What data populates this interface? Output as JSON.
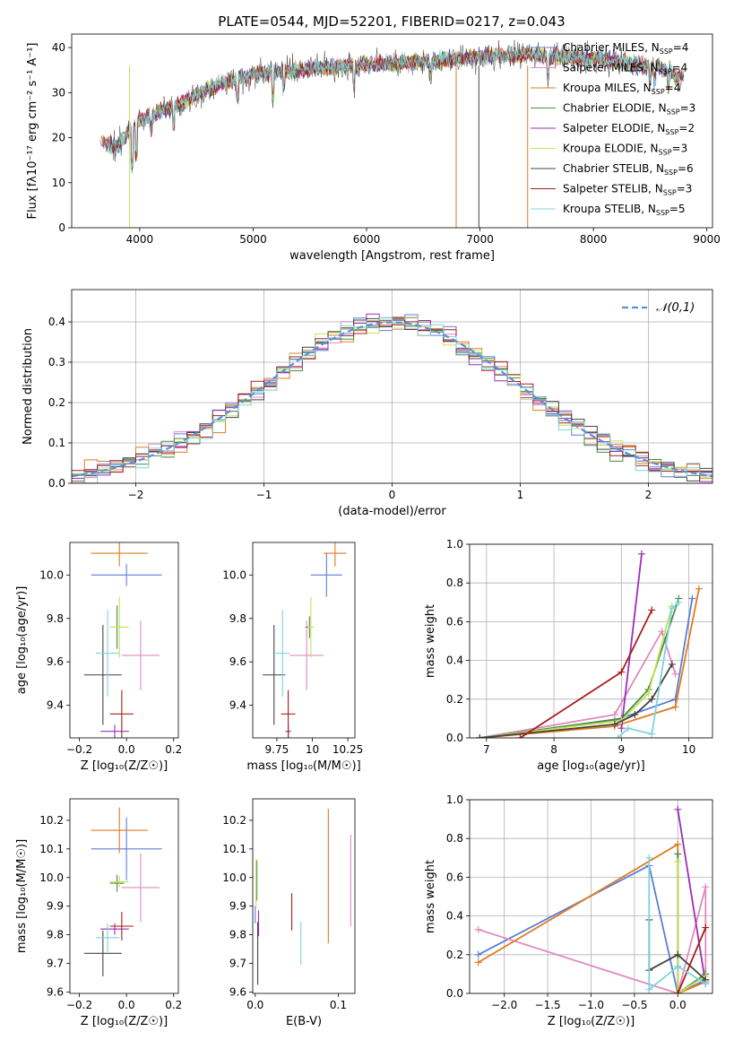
{
  "page_title": "PLATE=0544, MJD=52201, FIBERID=0217, z=0.043",
  "colors": {
    "Chabrier MILES": "#5b7fd6",
    "Salpeter MILES": "#e08abf",
    "Kroupa MILES": "#e07b22",
    "Chabrier ELODIE": "#4a8a4a",
    "Salpeter ELODIE": "#9b2fb5",
    "Kroupa ELODIE": "#c6e254",
    "Chabrier STELIB": "#444444",
    "Salpeter STELIB": "#a81d1d",
    "Kroupa STELIB": "#7fd3de",
    "normal": "#5b8fd6",
    "grid": "#b0b0b0"
  },
  "chart_data": [
    {
      "id": "spectrum",
      "type": "line",
      "title": "PLATE=0544, MJD=52201, FIBERID=0217, z=0.043",
      "xlabel": "wavelength [Angstrom, rest frame]",
      "ylabel": "Flux [fλ10⁻¹⁷ erg cm⁻² s⁻¹ A⁻¹]",
      "xlim": [
        3400,
        9050
      ],
      "ylim": [
        0,
        43
      ],
      "xticks": [
        4000,
        5000,
        6000,
        7000,
        8000,
        9000
      ],
      "yticks": [
        0,
        10,
        20,
        30,
        40
      ],
      "grid": false,
      "legend": "top-right",
      "continuum_x": [
        3650,
        3800,
        4000,
        4200,
        4400,
        4700,
        5000,
        5400,
        5800,
        6200,
        6600,
        7000,
        7400,
        7800,
        8200,
        8600,
        8800
      ],
      "continuum_y": [
        19,
        18,
        24,
        26,
        28,
        32,
        34,
        35,
        36,
        36.5,
        37,
        38,
        38.5,
        38,
        37,
        35.5,
        33
      ],
      "series": [
        {
          "name": "Chabrier MILES, N_SSP=4",
          "label_main": "Chabrier MILES, N",
          "label_sub": "SSP",
          "label_end": "=4"
        },
        {
          "name": "Salpeter MILES, N_SSP=4",
          "label_main": "Salpeter MILES, N",
          "label_sub": "SSP",
          "label_end": "=4"
        },
        {
          "name": "Kroupa MILES, N_SSP=4",
          "label_main": "Kroupa MILES, N",
          "label_sub": "SSP",
          "label_end": "=4"
        },
        {
          "name": "Chabrier ELODIE, N_SSP=3",
          "label_main": "Chabrier ELODIE, N",
          "label_sub": "SSP",
          "label_end": "=3"
        },
        {
          "name": "Salpeter ELODIE, N_SSP=2",
          "label_main": "Salpeter ELODIE, N",
          "label_sub": "SSP",
          "label_end": "=2"
        },
        {
          "name": "Kroupa ELODIE, N_SSP=3",
          "label_main": "Kroupa ELODIE, N",
          "label_sub": "SSP",
          "label_end": "=3"
        },
        {
          "name": "Chabrier STELIB, N_SSP=6",
          "label_main": "Chabrier STELIB, N",
          "label_sub": "SSP",
          "label_end": "=6"
        },
        {
          "name": "Salpeter STELIB, N_SSP=3",
          "label_main": "Salpeter STELIB, N",
          "label_sub": "SSP",
          "label_end": "=3"
        },
        {
          "name": "Kroupa STELIB, N_SSP=5",
          "label_main": "Kroupa STELIB, N",
          "label_sub": "SSP",
          "label_end": "=5"
        }
      ]
    },
    {
      "id": "residuals",
      "type": "line",
      "xlabel": "(data-model)/error",
      "ylabel": "Normed distribution",
      "xlim": [
        -2.5,
        2.5
      ],
      "ylim": [
        0,
        0.48
      ],
      "xticks": [
        -2,
        -1,
        0,
        1,
        2
      ],
      "yticks": [
        0.0,
        0.1,
        0.2,
        0.3,
        0.4
      ],
      "grid": true,
      "legend": "top-right",
      "legend_label": "𝒩(0,1)",
      "bin_width": 0.1,
      "series": "normal curve with histogram steps for each of the 9 model fits"
    },
    {
      "id": "age_vs_Z",
      "type": "scatter",
      "xlabel": "Z [log₁₀(Z/Z☉)]",
      "ylabel": "age  [log₁₀(age/yr)]",
      "xlim": [
        -0.24,
        0.22
      ],
      "ylim": [
        9.25,
        10.15
      ],
      "xticks": [
        -0.2,
        0.0,
        0.2
      ],
      "yticks": [
        9.4,
        9.6,
        9.8,
        10.0
      ],
      "points": [
        {
          "series": "Chabrier MILES",
          "x": 0.0,
          "y": 10.0,
          "xerr": 0.15,
          "yerr": 0.05
        },
        {
          "series": "Salpeter MILES",
          "x": 0.06,
          "y": 9.63,
          "xerr": 0.08,
          "yerr": 0.16
        },
        {
          "series": "Kroupa MILES",
          "x": -0.03,
          "y": 10.1,
          "xerr": 0.12,
          "yerr": 0.06
        },
        {
          "series": "Chabrier ELODIE",
          "x": -0.04,
          "y": 9.76,
          "xerr": 0.03,
          "yerr": 0.1
        },
        {
          "series": "Salpeter ELODIE",
          "x": -0.05,
          "y": 9.28,
          "xerr": 0.06,
          "yerr": 0.03
        },
        {
          "series": "Kroupa ELODIE",
          "x": -0.03,
          "y": 9.76,
          "xerr": 0.04,
          "yerr": 0.14
        },
        {
          "series": "Chabrier STELIB",
          "x": -0.1,
          "y": 9.54,
          "xerr": 0.08,
          "yerr": 0.23
        },
        {
          "series": "Salpeter STELIB",
          "x": -0.02,
          "y": 9.36,
          "xerr": 0.05,
          "yerr": 0.11
        },
        {
          "series": "Kroupa STELIB",
          "x": -0.08,
          "y": 9.64,
          "xerr": 0.05,
          "yerr": 0.2
        }
      ]
    },
    {
      "id": "age_vs_mass",
      "type": "scatter",
      "xlabel": "mass [log₁₀(M/M☉)]",
      "ylabel": "",
      "xlim": [
        9.58,
        10.3
      ],
      "ylim": [
        9.25,
        10.15
      ],
      "xticks": [
        9.75,
        10.0,
        10.25
      ],
      "yticks": [
        9.4,
        9.6,
        9.8,
        10.0
      ],
      "points": [
        {
          "series": "Chabrier MILES",
          "x": 10.1,
          "y": 10.0,
          "xerr": 0.11,
          "yerr": 0.1
        },
        {
          "series": "Salpeter MILES",
          "x": 9.96,
          "y": 9.63,
          "xerr": 0.12,
          "yerr": 0.16
        },
        {
          "series": "Kroupa MILES",
          "x": 10.16,
          "y": 10.1,
          "xerr": 0.08,
          "yerr": 0.06
        },
        {
          "series": "Chabrier ELODIE",
          "x": 9.98,
          "y": 9.76,
          "xerr": 0.03,
          "yerr": 0.05
        },
        {
          "series": "Salpeter ELODIE",
          "x": 9.83,
          "y": 9.28,
          "xerr": 0.02,
          "yerr": 0.03
        },
        {
          "series": "Kroupa ELODIE",
          "x": 9.99,
          "y": 9.76,
          "xerr": 0.02,
          "yerr": 0.14
        },
        {
          "series": "Chabrier STELIB",
          "x": 9.73,
          "y": 9.54,
          "xerr": 0.08,
          "yerr": 0.23
        },
        {
          "series": "Salpeter STELIB",
          "x": 9.83,
          "y": 9.36,
          "xerr": 0.05,
          "yerr": 0.11
        },
        {
          "series": "Kroupa STELIB",
          "x": 9.79,
          "y": 9.64,
          "xerr": 0.05,
          "yerr": 0.2
        }
      ]
    },
    {
      "id": "weight_vs_age",
      "type": "line",
      "xlabel": "age  [log₁₀(age/yr)]",
      "ylabel": "mass weight",
      "xlim": [
        6.75,
        10.35
      ],
      "ylim": [
        0.0,
        1.0
      ],
      "xticks": [
        7,
        8,
        9,
        10
      ],
      "yticks": [
        0.0,
        0.2,
        0.4,
        0.6,
        0.8,
        1.0
      ],
      "grid": true,
      "series": [
        {
          "name": "Chabrier MILES",
          "x": [
            6.9,
            8.9,
            9.8,
            10.05
          ],
          "y": [
            0.0,
            0.09,
            0.2,
            0.72
          ]
        },
        {
          "name": "Salpeter MILES",
          "x": [
            6.9,
            8.9,
            9.6,
            9.8
          ],
          "y": [
            0.0,
            0.12,
            0.55,
            0.33
          ]
        },
        {
          "name": "Kroupa MILES",
          "x": [
            6.9,
            8.9,
            9.8,
            10.15
          ],
          "y": [
            0.0,
            0.06,
            0.16,
            0.77
          ]
        },
        {
          "name": "Chabrier ELODIE",
          "x": [
            6.9,
            9.0,
            9.4,
            9.85
          ],
          "y": [
            0.0,
            0.1,
            0.25,
            0.72
          ]
        },
        {
          "name": "Salpeter ELODIE",
          "x": [
            9.0,
            9.3
          ],
          "y": [
            0.05,
            0.95
          ]
        },
        {
          "name": "Kroupa ELODIE",
          "x": [
            6.9,
            9.0,
            9.4,
            9.75
          ],
          "y": [
            0.0,
            0.09,
            0.23,
            0.68
          ]
        },
        {
          "name": "Chabrier STELIB",
          "x": [
            6.9,
            8.9,
            9.2,
            9.45,
            9.75
          ],
          "y": [
            0.0,
            0.07,
            0.12,
            0.2,
            0.38
          ]
        },
        {
          "name": "Salpeter STELIB",
          "x": [
            7.5,
            9.0,
            9.45
          ],
          "y": [
            0.0,
            0.34,
            0.66
          ]
        },
        {
          "name": "Kroupa STELIB",
          "x": [
            8.95,
            9.1,
            9.45,
            9.75,
            9.85
          ],
          "y": [
            0.0,
            0.05,
            0.02,
            0.67,
            0.7
          ]
        }
      ]
    },
    {
      "id": "mass_vs_Z",
      "type": "scatter",
      "xlabel": "Z [log₁₀(Z/Z☉)]",
      "ylabel": "mass [log₁₀(M/M☉)]",
      "xlim": [
        -0.24,
        0.22
      ],
      "ylim": [
        9.595,
        10.275
      ],
      "xticks": [
        -0.2,
        0.0,
        0.2
      ],
      "yticks": [
        9.6,
        9.7,
        9.8,
        9.9,
        10.0,
        10.1,
        10.2
      ],
      "points": [
        {
          "series": "Chabrier MILES",
          "x": 0.0,
          "y": 10.1,
          "xerr": 0.15,
          "yerr": 0.11
        },
        {
          "series": "Salpeter MILES",
          "x": 0.06,
          "y": 9.965,
          "xerr": 0.08,
          "yerr": 0.12
        },
        {
          "series": "Kroupa MILES",
          "x": -0.03,
          "y": 10.165,
          "xerr": 0.12,
          "yerr": 0.08
        },
        {
          "series": "Chabrier ELODIE",
          "x": -0.04,
          "y": 9.98,
          "xerr": 0.03,
          "yerr": 0.03
        },
        {
          "series": "Salpeter ELODIE",
          "x": -0.05,
          "y": 9.82,
          "xerr": 0.06,
          "yerr": 0.02
        },
        {
          "series": "Kroupa ELODIE",
          "x": -0.03,
          "y": 9.985,
          "xerr": 0.04,
          "yerr": 0.02
        },
        {
          "series": "Chabrier STELIB",
          "x": -0.1,
          "y": 9.735,
          "xerr": 0.08,
          "yerr": 0.08
        },
        {
          "series": "Salpeter STELIB",
          "x": -0.02,
          "y": 9.83,
          "xerr": 0.05,
          "yerr": 0.05
        },
        {
          "series": "Kroupa STELIB",
          "x": -0.08,
          "y": 9.79,
          "xerr": 0.05,
          "yerr": 0.05
        }
      ]
    },
    {
      "id": "mass_vs_EBV",
      "type": "scatter",
      "xlabel": "E(B-V)",
      "ylabel": "",
      "xlim": [
        -0.003,
        0.12
      ],
      "ylim": [
        9.595,
        10.275
      ],
      "xticks": [
        0.0,
        0.1
      ],
      "yticks": [
        9.6,
        9.7,
        9.8,
        9.9,
        10.0,
        10.1,
        10.2
      ],
      "points": [
        {
          "series": "Chabrier MILES",
          "x": 0.0,
          "y": 9.87,
          "yerr": 0.03
        },
        {
          "series": "Salpeter MILES",
          "x": 0.115,
          "y": 9.99,
          "yerr": 0.16
        },
        {
          "series": "Kroupa MILES",
          "x": 0.088,
          "y": 10.005,
          "yerr": 0.235
        },
        {
          "series": "Chabrier ELODIE",
          "x": 0.002,
          "y": 9.99,
          "yerr": 0.07
        },
        {
          "series": "Salpeter ELODIE",
          "x": 0.004,
          "y": 9.84,
          "yerr": 0.045
        },
        {
          "series": "Kroupa ELODIE",
          "x": 0.001,
          "y": 9.98,
          "yerr": 0.085
        },
        {
          "series": "Chabrier STELIB",
          "x": 0.003,
          "y": 9.735,
          "yerr": 0.11
        },
        {
          "series": "Salpeter STELIB",
          "x": 0.044,
          "y": 9.88,
          "yerr": 0.065
        },
        {
          "series": "Kroupa STELIB",
          "x": 0.055,
          "y": 9.77,
          "yerr": 0.075
        }
      ]
    },
    {
      "id": "weight_vs_Z",
      "type": "line",
      "xlabel": "Z [log₁₀(Z/Z☉)]",
      "ylabel": "mass weight",
      "xlim": [
        -2.4,
        0.4
      ],
      "ylim": [
        0.0,
        1.0
      ],
      "xticks": [
        -2.0,
        -1.5,
        -1.0,
        -0.5,
        0.0
      ],
      "yticks": [
        0.0,
        0.2,
        0.4,
        0.6,
        0.8,
        1.0
      ],
      "grid": true,
      "series": [
        {
          "name": "Chabrier MILES",
          "x": [
            -2.3,
            -0.33,
            0.0,
            0.32
          ],
          "y": [
            0.2,
            0.66,
            0.0,
            0.07
          ]
        },
        {
          "name": "Salpeter MILES",
          "x": [
            -2.3,
            0.0,
            0.32,
            0.32
          ],
          "y": [
            0.33,
            0.0,
            0.55,
            0.09
          ]
        },
        {
          "name": "Kroupa MILES",
          "x": [
            -2.3,
            0.0,
            0.0,
            0.32
          ],
          "y": [
            0.16,
            0.77,
            0.0,
            0.06
          ]
        },
        {
          "name": "Chabrier ELODIE",
          "x": [
            0.0,
            0.0,
            0.32
          ],
          "y": [
            0.72,
            0.0,
            0.1
          ]
        },
        {
          "name": "Salpeter ELODIE",
          "x": [
            0.0,
            0.32
          ],
          "y": [
            0.95,
            0.05
          ]
        },
        {
          "name": "Kroupa ELODIE",
          "x": [
            0.0,
            0.0,
            0.32
          ],
          "y": [
            0.68,
            0.0,
            0.09
          ]
        },
        {
          "name": "Chabrier STELIB",
          "x": [
            -0.33,
            -0.33,
            0.0,
            0.32
          ],
          "y": [
            0.38,
            0.12,
            0.2,
            0.07
          ]
        },
        {
          "name": "Salpeter STELIB",
          "x": [
            0.0,
            0.32
          ],
          "y": [
            0.0,
            0.34
          ]
        },
        {
          "name": "Kroupa STELIB",
          "x": [
            -0.33,
            -0.33,
            0.0,
            0.32
          ],
          "y": [
            0.7,
            0.02,
            0.14,
            0.05
          ]
        }
      ]
    }
  ]
}
